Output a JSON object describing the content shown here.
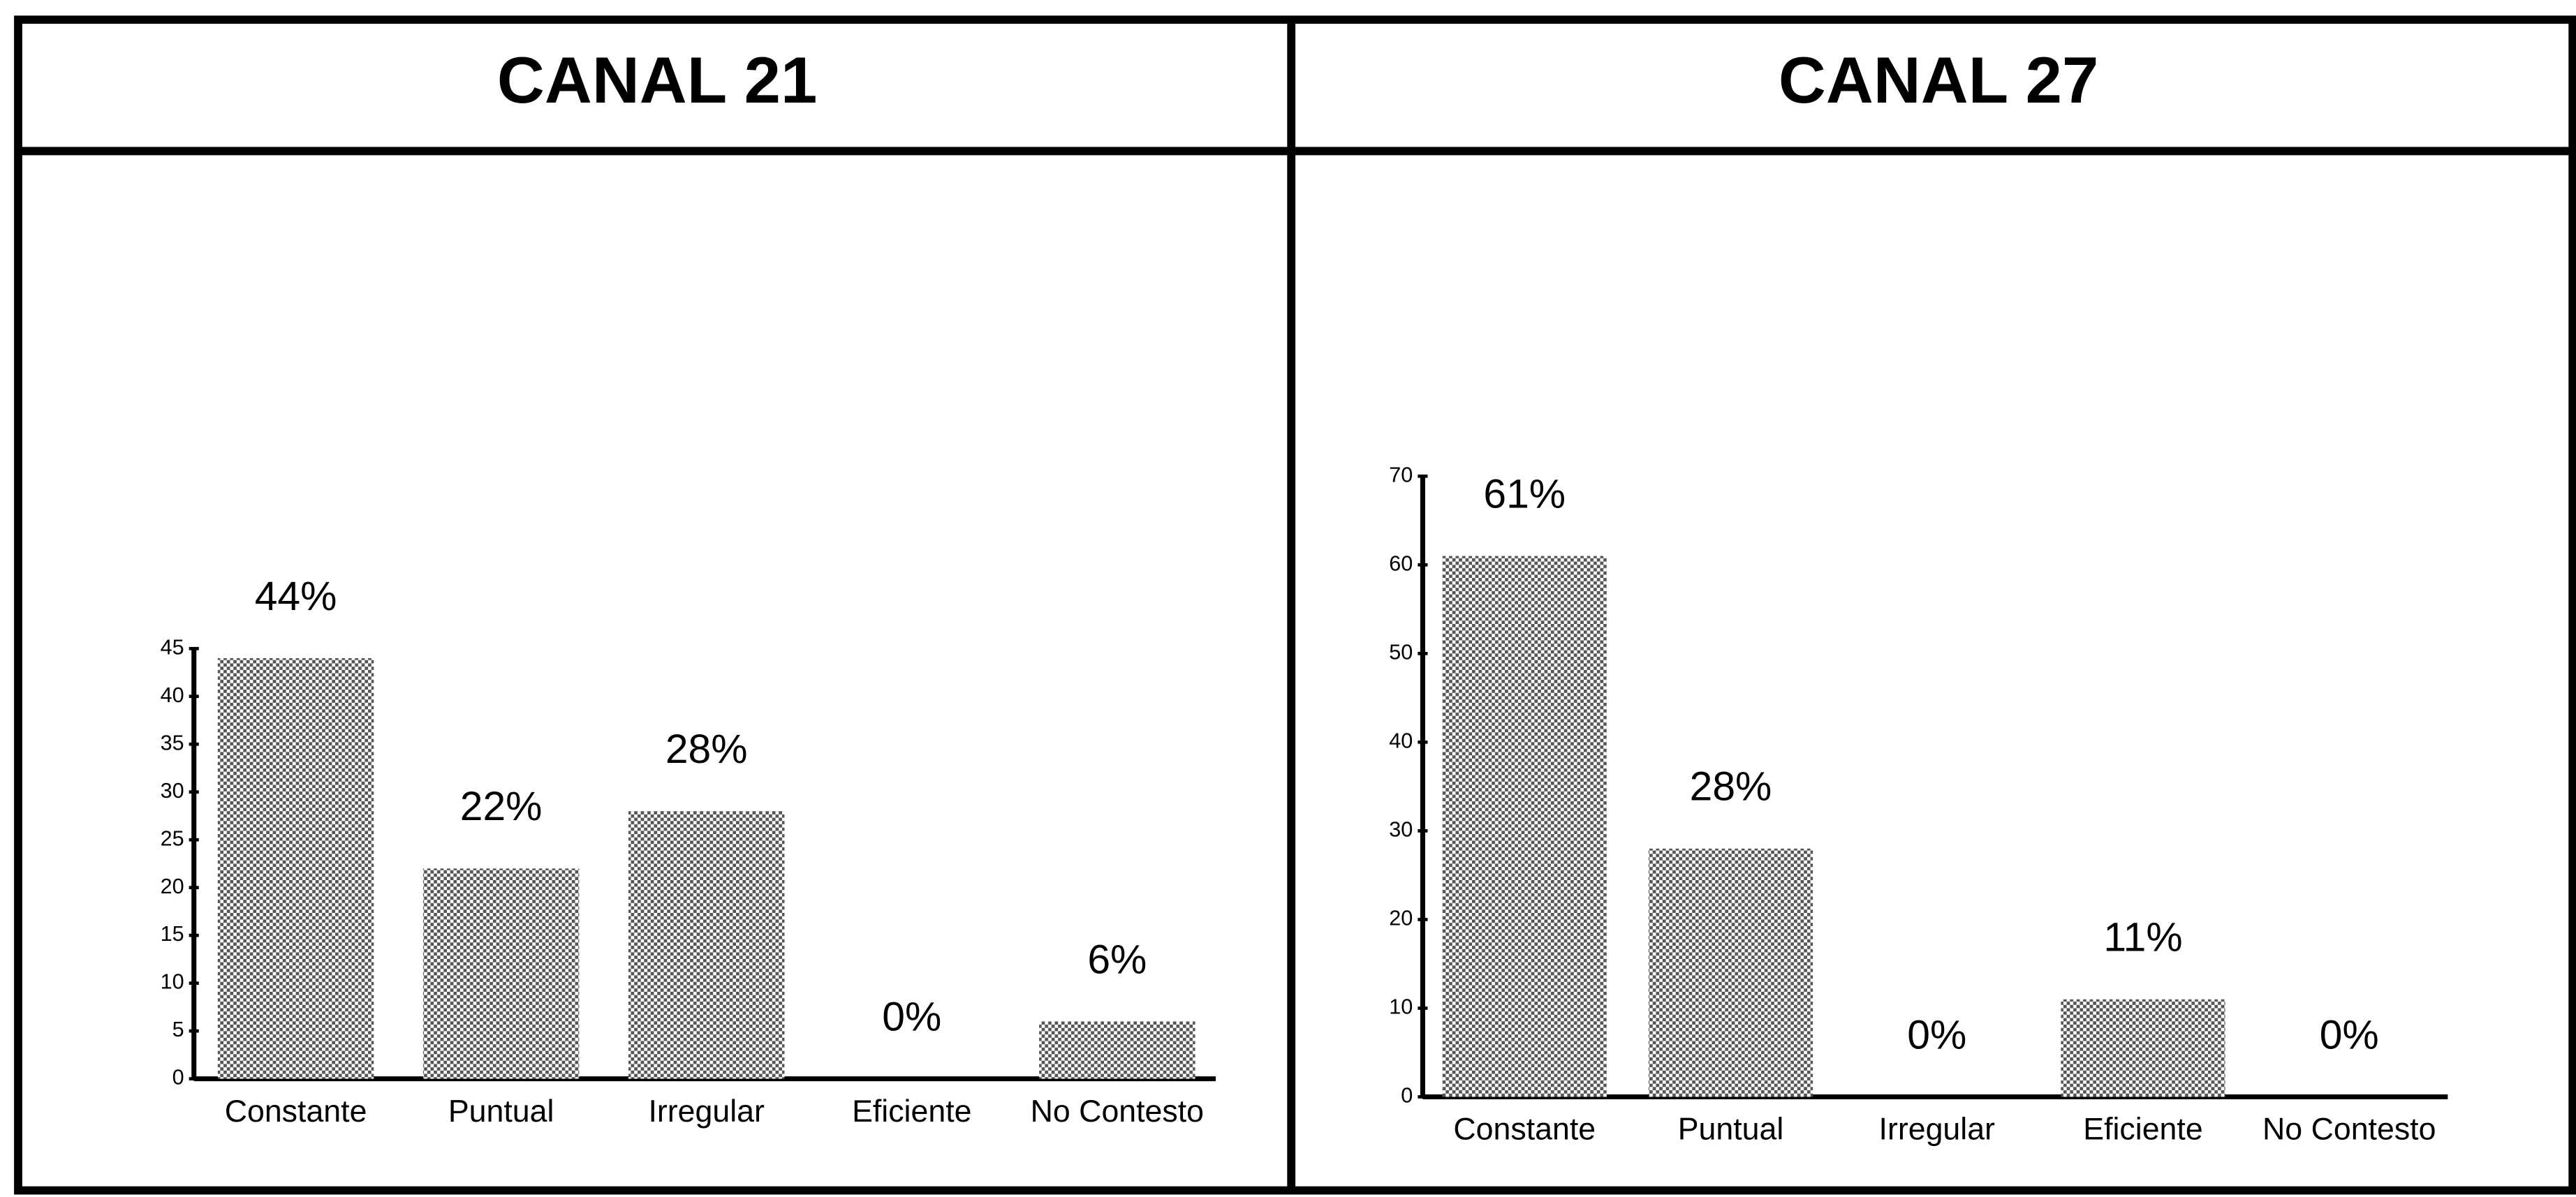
{
  "chart_data": [
    {
      "type": "bar",
      "title": "CANAL 21",
      "categories": [
        "Constante",
        "Puntual",
        "Irregular",
        "Eficiente",
        "No Contesto"
      ],
      "values": [
        44,
        22,
        28,
        0,
        6
      ],
      "value_labels": [
        "44%",
        "22%",
        "28%",
        "0%",
        "6%"
      ],
      "color": "#555555",
      "ylim": [
        0,
        45
      ],
      "yticks": [
        0,
        5,
        10,
        15,
        20,
        25,
        30,
        35,
        40,
        45
      ]
    },
    {
      "type": "bar",
      "title": "CANAL 27",
      "categories": [
        "Constante",
        "Puntual",
        "Irregular",
        "Eficiente",
        "No Contesto"
      ],
      "values": [
        61,
        28,
        0,
        11,
        0
      ],
      "value_labels": [
        "61%",
        "28%",
        "0%",
        "11%",
        "0%"
      ],
      "color": "#555555",
      "ylim": [
        0,
        70
      ],
      "yticks": [
        0,
        10,
        20,
        30,
        40,
        50,
        60,
        70
      ]
    }
  ]
}
